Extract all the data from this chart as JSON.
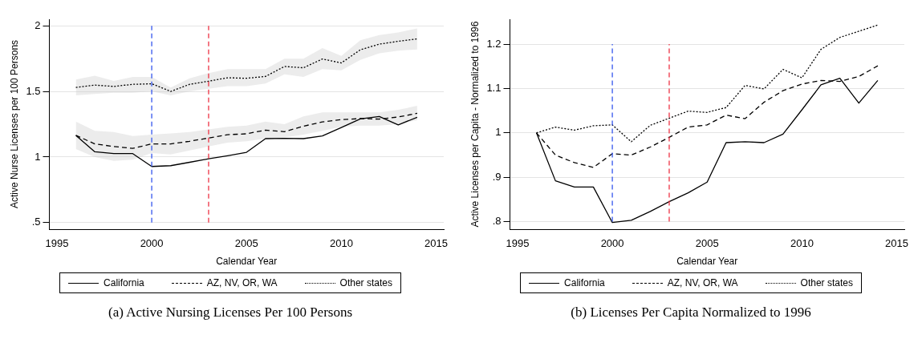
{
  "chart_data": [
    {
      "type": "line",
      "title": "(a) Active Nursing Licenses Per 100 Persons",
      "xlabel": "Calendar Year",
      "ylabel": "Active Nurse Licenses per 100 Persons",
      "x": [
        1996,
        1997,
        1998,
        1999,
        2000,
        2001,
        2002,
        2003,
        2004,
        2005,
        2006,
        2007,
        2008,
        2009,
        2010,
        2011,
        2012,
        2013,
        2014
      ],
      "series": [
        {
          "name": "California",
          "color": "#000000",
          "line_style": "solid",
          "values": [
            1.165,
            1.04,
            1.026,
            1.026,
            0.928,
            0.934,
            0.96,
            0.986,
            1.01,
            1.036,
            1.14,
            1.142,
            1.14,
            1.161,
            1.225,
            1.291,
            1.309,
            1.245,
            1.303
          ]
        },
        {
          "name": "AZ, NV, OR, WA",
          "color": "#000000",
          "line_style": "dashed",
          "values": [
            1.165,
            1.1,
            1.08,
            1.066,
            1.1,
            1.1,
            1.12,
            1.145,
            1.17,
            1.177,
            1.205,
            1.193,
            1.235,
            1.267,
            1.285,
            1.293,
            1.289,
            1.305,
            1.333
          ],
          "lower": [
            1.06,
            1.0,
            0.97,
            0.98,
            1.03,
            1.02,
            1.05,
            1.08,
            1.11,
            1.12,
            1.14,
            1.15,
            1.17,
            1.2,
            1.23,
            1.24,
            1.24,
            1.25,
            1.28
          ],
          "upper": [
            1.27,
            1.2,
            1.19,
            1.16,
            1.17,
            1.18,
            1.19,
            1.21,
            1.23,
            1.24,
            1.27,
            1.25,
            1.31,
            1.34,
            1.34,
            1.34,
            1.34,
            1.36,
            1.39
          ]
        },
        {
          "name": "Other states",
          "color": "#000000",
          "line_style": "dotted",
          "values": [
            1.53,
            1.548,
            1.538,
            1.554,
            1.558,
            1.5,
            1.554,
            1.578,
            1.604,
            1.6,
            1.614,
            1.69,
            1.68,
            1.747,
            1.717,
            1.817,
            1.86,
            1.882,
            1.9
          ],
          "lower": [
            1.47,
            1.48,
            1.49,
            1.49,
            1.5,
            1.47,
            1.5,
            1.52,
            1.54,
            1.54,
            1.56,
            1.63,
            1.61,
            1.67,
            1.66,
            1.74,
            1.79,
            1.81,
            1.82
          ],
          "upper": [
            1.59,
            1.62,
            1.58,
            1.61,
            1.61,
            1.53,
            1.6,
            1.64,
            1.67,
            1.67,
            1.67,
            1.75,
            1.75,
            1.83,
            1.77,
            1.89,
            1.93,
            1.95,
            1.98
          ]
        }
      ],
      "ref_lines": [
        {
          "axis": "x",
          "value": 2000,
          "color": "#3355ee",
          "line_style": "dashed"
        },
        {
          "axis": "x",
          "value": 2003,
          "color": "#ee3344",
          "line_style": "dashed"
        }
      ],
      "xlim": [
        1994.6,
        2015.4
      ],
      "ylim": [
        0.45,
        2.05
      ],
      "xticks": [
        1995,
        2000,
        2005,
        2010,
        2015
      ],
      "yticks": [
        {
          "value": 0.5,
          "label": ".5"
        },
        1,
        1.5,
        2
      ],
      "grid": "y",
      "legend": "bottom"
    },
    {
      "type": "line",
      "title": "(b) Licenses Per Capita Normalized to 1996",
      "xlabel": "Calendar Year",
      "ylabel": "Active Licenses per Capita - Normalized to 1996",
      "x": [
        1996,
        1997,
        1998,
        1999,
        2000,
        2001,
        2002,
        2003,
        2004,
        2005,
        2006,
        2007,
        2008,
        2009,
        2010,
        2011,
        2012,
        2013,
        2014
      ],
      "series": [
        {
          "name": "California",
          "color": "#000000",
          "line_style": "solid",
          "values": [
            1.0,
            0.892,
            0.878,
            0.878,
            0.798,
            0.803,
            0.823,
            0.845,
            0.865,
            0.889,
            0.978,
            0.98,
            0.978,
            0.997,
            1.052,
            1.108,
            1.123,
            1.067,
            1.118
          ]
        },
        {
          "name": "AZ, NV, OR, WA",
          "color": "#000000",
          "line_style": "dashed",
          "values": [
            1.0,
            0.95,
            0.933,
            0.922,
            0.953,
            0.95,
            0.968,
            0.99,
            1.013,
            1.018,
            1.04,
            1.032,
            1.069,
            1.095,
            1.11,
            1.118,
            1.116,
            1.127,
            1.151
          ]
        },
        {
          "name": "Other states",
          "color": "#000000",
          "line_style": "dotted",
          "values": [
            1.0,
            1.013,
            1.006,
            1.016,
            1.018,
            0.98,
            1.017,
            1.033,
            1.049,
            1.046,
            1.057,
            1.107,
            1.099,
            1.143,
            1.124,
            1.188,
            1.215,
            1.229,
            1.243
          ]
        }
      ],
      "ref_lines": [
        {
          "axis": "x",
          "value": 2000,
          "color": "#3355ee",
          "line_style": "dashed"
        },
        {
          "axis": "x",
          "value": 2003,
          "color": "#ee3344",
          "line_style": "dashed"
        }
      ],
      "xlim": [
        1994.6,
        2015.4
      ],
      "ylim": [
        0.783,
        1.256
      ],
      "xticks": [
        1995,
        2000,
        2005,
        2010,
        2015
      ],
      "yticks": [
        {
          "value": 0.8,
          "label": ".8"
        },
        {
          "value": 0.9,
          "label": ".9"
        },
        1,
        1.1,
        1.2
      ],
      "grid": "y",
      "legend": "bottom"
    }
  ]
}
